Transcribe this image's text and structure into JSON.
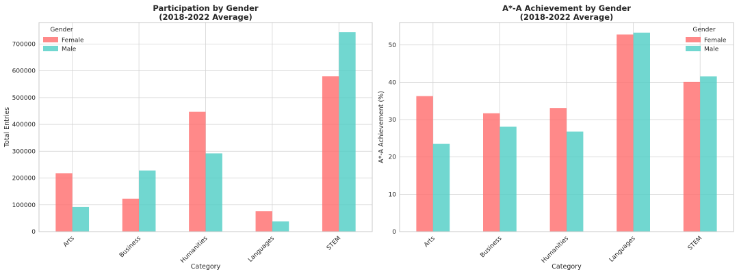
{
  "colors": {
    "female": "#ff6b6b",
    "male": "#4ecdc4",
    "grid": "#d4d4d4",
    "frame": "#c8c8c8"
  },
  "chart_data": [
    {
      "type": "bar",
      "title": "Participation by Gender",
      "subtitle": "(2018-2022 Average)",
      "xlabel": "Category",
      "ylabel": "Total Entries",
      "categories": [
        "Arts",
        "Business",
        "Humanities",
        "Languages",
        "STEM"
      ],
      "yticks": [
        "0",
        "100000",
        "200000",
        "300000",
        "400000",
        "500000",
        "600000",
        "700000"
      ],
      "ylim": [
        0,
        780000
      ],
      "grid": true,
      "legend": {
        "title": "Gender",
        "placement": "top-left"
      },
      "series": [
        {
          "name": "Female",
          "values": [
            218000,
            123000,
            447000,
            76000,
            580000
          ]
        },
        {
          "name": "Male",
          "values": [
            92000,
            228000,
            292000,
            38000,
            744000
          ]
        }
      ]
    },
    {
      "type": "bar",
      "title": "A*-A Achievement by Gender",
      "subtitle": "(2018-2022 Average)",
      "xlabel": "Category",
      "ylabel": "A*-A Achievement (%)",
      "categories": [
        "Arts",
        "Business",
        "Humanities",
        "Languages",
        "STEM"
      ],
      "yticks": [
        "0",
        "10",
        "20",
        "30",
        "40",
        "50"
      ],
      "ylim": [
        0,
        56
      ],
      "grid": true,
      "legend": {
        "title": "Gender",
        "placement": "top-right"
      },
      "series": [
        {
          "name": "Female",
          "values": [
            36.3,
            31.7,
            33.1,
            52.8,
            40.1
          ]
        },
        {
          "name": "Male",
          "values": [
            23.5,
            28.1,
            26.8,
            53.3,
            41.6
          ]
        }
      ]
    }
  ]
}
